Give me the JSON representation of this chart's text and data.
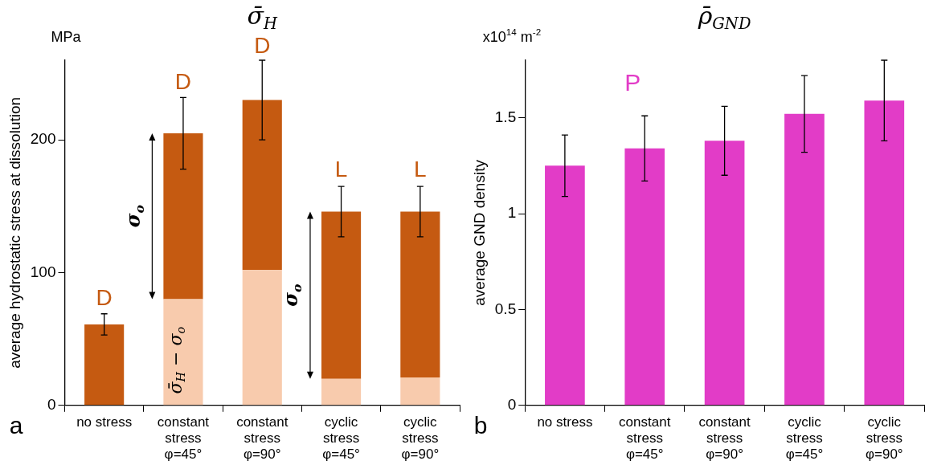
{
  "chart_data": [
    {
      "type": "bar",
      "title": "σ̄$_{H}$",
      "ylabel": "average hydrostatic stress at dissolution",
      "categories": [
        "no stress",
        "constant stress φ=45°",
        "constant stress φ=90°",
        "cyclic stress φ=45°",
        "cyclic stress φ=90°"
      ],
      "stacked": true,
      "series": [
        {
          "name": "σ̄$_{H}$ − σ$_{o}$",
          "color": "#f8cbad",
          "values": [
            null,
            80,
            102,
            20,
            21
          ]
        },
        {
          "color": "#c55a11",
          "values": [
            61,
            125,
            128,
            126,
            125
          ],
          "errors": [
            8,
            27,
            30,
            19,
            19
          ]
        }
      ],
      "ylim": [
        0,
        260
      ],
      "yticks": [
        0,
        100,
        200
      ],
      "legend": false,
      "annotations": [
        "MPa",
        "σ$_{o}$",
        "σ$_{o}$",
        "a",
        {
          "text": "D",
          "x": "no stress",
          "y": 69
        },
        {
          "text": "D",
          "x": "constant stress φ=45°",
          "y": 232
        },
        {
          "text": "D",
          "x": "constant stress φ=90°",
          "y": 259
        },
        {
          "text": "L",
          "x": "cyclic stress φ=45°",
          "y": 166
        },
        {
          "text": "L",
          "x": "cyclic stress φ=90°",
          "y": 166
        }
      ]
    },
    {
      "type": "bar",
      "title": "ρ̄$_{GND}$",
      "ylabel": "average GND density",
      "categories": [
        "no stress",
        "constant stress φ=45°",
        "constant stress φ=90°",
        "cyclic stress φ=45°",
        "cyclic stress φ=90°"
      ],
      "values": [
        1.25,
        1.34,
        1.38,
        1.52,
        1.59
      ],
      "color": "#e23cc7",
      "errors": [
        0.16,
        0.17,
        0.18,
        0.2,
        0.21
      ],
      "ylim": [
        0,
        1.8
      ],
      "yticks": [
        0,
        0.5,
        1,
        1.5
      ],
      "legend": false,
      "annotations": [
        "x10$^{14}$ m$^{-2}$",
        "P",
        "b"
      ]
    }
  ]
}
